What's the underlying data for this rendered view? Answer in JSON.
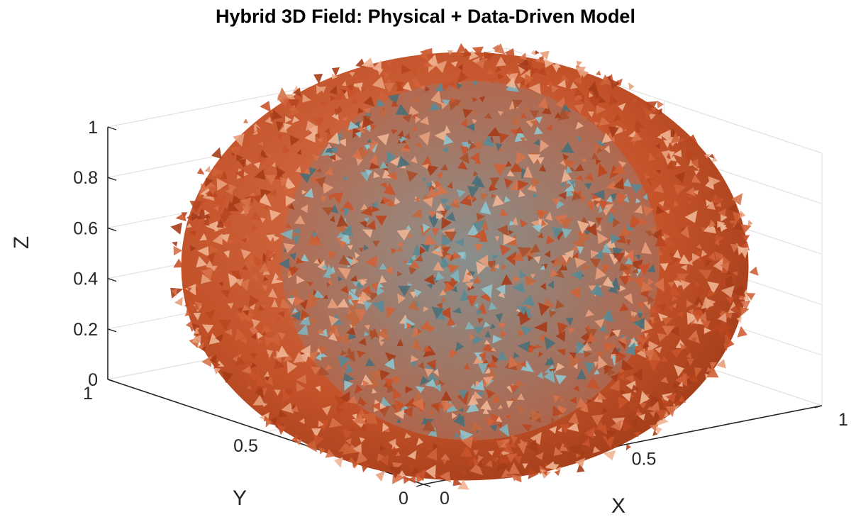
{
  "chart_data": {
    "type": "isosurface-3d",
    "title": "Hybrid 3D Field: Physical + Data-Driven Model",
    "xlabel": "X",
    "ylabel": "Y",
    "zlabel": "Z",
    "xlim": [
      0,
      1
    ],
    "ylim": [
      0,
      1
    ],
    "zlim": [
      0,
      1
    ],
    "x_ticks": [
      "0",
      "0.5",
      "1"
    ],
    "y_ticks": [
      "0",
      "0.5",
      "1"
    ],
    "z_ticks": [
      "0",
      "0.2",
      "0.4",
      "0.6",
      "0.8",
      "1"
    ],
    "grid": true,
    "surfaces": [
      {
        "shape": "sphere",
        "center": [
          0.5,
          0.5,
          0.5
        ],
        "radius": 0.45,
        "color": "#c8552f",
        "position": "outer"
      },
      {
        "shape": "sphere",
        "center": [
          0.5,
          0.5,
          0.5
        ],
        "radius": 0.3,
        "color": "#5f8f9a",
        "position": "inner"
      }
    ]
  }
}
